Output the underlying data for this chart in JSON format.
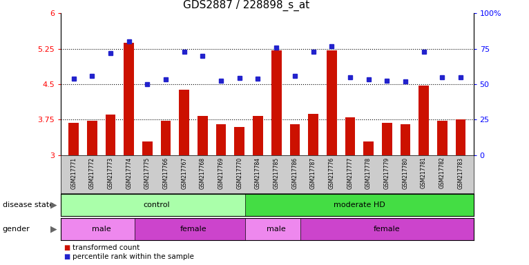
{
  "title": "GDS2887 / 228898_s_at",
  "samples": [
    "GSM217771",
    "GSM217772",
    "GSM217773",
    "GSM217774",
    "GSM217775",
    "GSM217766",
    "GSM217767",
    "GSM217768",
    "GSM217769",
    "GSM217770",
    "GSM217784",
    "GSM217785",
    "GSM217786",
    "GSM217787",
    "GSM217776",
    "GSM217777",
    "GSM217778",
    "GSM217779",
    "GSM217780",
    "GSM217781",
    "GSM217782",
    "GSM217783"
  ],
  "bar_values": [
    3.68,
    3.72,
    3.85,
    5.38,
    3.28,
    3.73,
    4.38,
    3.83,
    3.65,
    3.6,
    3.82,
    5.22,
    3.65,
    3.87,
    5.22,
    3.8,
    3.28,
    3.68,
    3.65,
    4.47,
    3.72,
    3.75
  ],
  "dot_values": [
    4.62,
    4.68,
    5.15,
    5.4,
    4.5,
    4.6,
    5.18,
    5.1,
    4.57,
    4.63,
    4.62,
    5.28,
    4.68,
    5.18,
    5.3,
    4.65,
    4.6,
    4.57,
    4.55,
    5.18,
    4.65,
    4.65
  ],
  "ylim_left": [
    3.0,
    6.0
  ],
  "yticks_left": [
    3.0,
    3.75,
    4.5,
    5.25,
    6.0
  ],
  "ytick_labels_left": [
    "3",
    "3.75",
    "4.5",
    "5.25",
    "6"
  ],
  "ytick_labels_right": [
    "0",
    "25",
    "50",
    "75",
    "100%"
  ],
  "hlines": [
    3.75,
    4.5,
    5.25
  ],
  "bar_color": "#cc1100",
  "dot_color": "#2222cc",
  "disease_state_groups": [
    {
      "label": "control",
      "start": 0,
      "end": 9,
      "color": "#aaffaa"
    },
    {
      "label": "moderate HD",
      "start": 10,
      "end": 21,
      "color": "#44dd44"
    }
  ],
  "gender_groups": [
    {
      "label": "male",
      "start": 0,
      "end": 3,
      "color": "#ee88ee"
    },
    {
      "label": "female",
      "start": 4,
      "end": 9,
      "color": "#cc44cc"
    },
    {
      "label": "male",
      "start": 10,
      "end": 12,
      "color": "#ee88ee"
    },
    {
      "label": "female",
      "start": 13,
      "end": 21,
      "color": "#cc44cc"
    }
  ],
  "legend_entries": [
    {
      "label": "transformed count",
      "color": "#cc1100"
    },
    {
      "label": "percentile rank within the sample",
      "color": "#2222cc"
    }
  ],
  "bg_color": "#ffffff",
  "sample_band_color": "#cccccc"
}
